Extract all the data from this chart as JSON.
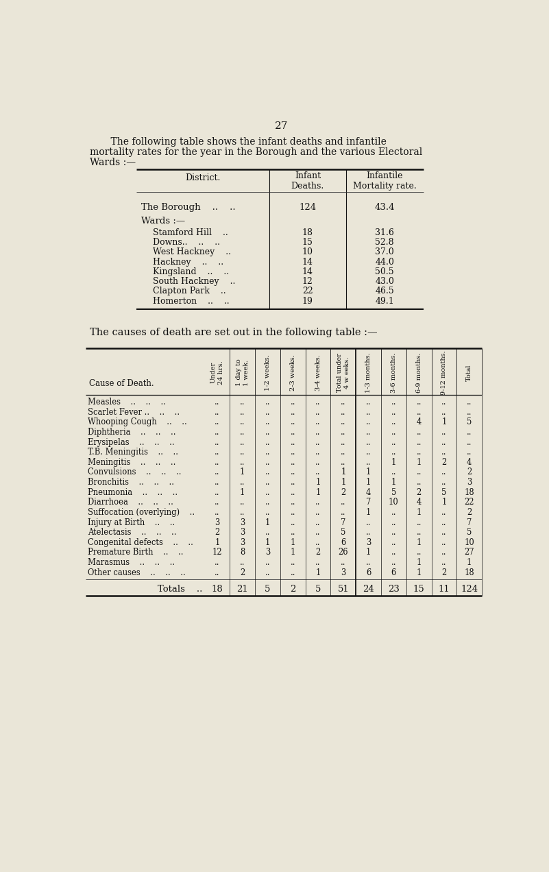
{
  "page_number": "27",
  "bg_color": "#eae6d8",
  "intro_text_line1": "    The following table shows the infant deaths and infantile",
  "intro_text_line2": "mortality rates for the year in the Borough and the various Electoral",
  "intro_text_line3": "Wards :—",
  "table1": {
    "col1_header": "District.",
    "col2_header": "Infant\nDeaths.",
    "col3_header": "Infantile\nMortality rate.",
    "borough_label": "The Borough    ..    ..",
    "borough_deaths": "124",
    "borough_rate": "43.4",
    "wards_label": "Wards :—",
    "ward_rows": [
      [
        "Stamford Hill    ..",
        "18",
        "31.6"
      ],
      [
        "Downs..    ..    ..",
        "15",
        "52.8"
      ],
      [
        "West Hackney    ..",
        "10",
        "37.0"
      ],
      [
        "Hackney    ..    ..",
        "14",
        "44.0"
      ],
      [
        "Kingsland    ..    ..",
        "14",
        "50.5"
      ],
      [
        "South Hackney    ..",
        "12",
        "43.0"
      ],
      [
        "Clapton Park    ..",
        "22",
        "46.5"
      ],
      [
        "Homerton    ..    ..",
        "19",
        "49.1"
      ]
    ]
  },
  "intro2": "The causes of death are set out in the following table :—",
  "table2": {
    "col_headers": [
      "Under\n24 hrs.",
      "1 day to\n1 week.",
      "1-2 weeks.",
      "2-3 weeks.",
      "3-4 weeks.",
      "Total under\n4 w eeks.",
      "1-3 months.",
      "3-6 months.",
      "6-9 months.",
      "9-12 months.",
      "Total"
    ],
    "row_label_header": "Cause of Death.",
    "rows": [
      [
        "Measles    ..    ..    ..",
        "..",
        "..",
        "..",
        "..",
        "..",
        "..",
        "..",
        "..",
        "..",
        "..",
        ".."
      ],
      [
        "Scarlet Fever ..    ..    ..",
        "..",
        "..",
        "..",
        "..",
        "..",
        "..",
        "..",
        "..",
        "..",
        "..",
        ".."
      ],
      [
        "Whooping Cough    ..    ..",
        "..",
        "..",
        "..",
        "..",
        "..",
        "..",
        "..",
        "..",
        "4",
        "1",
        "5"
      ],
      [
        "Diphtheria    ..    ..    ..",
        "..",
        "..",
        "..",
        "..",
        "..",
        "..",
        "..",
        "..",
        "..",
        "..",
        ".."
      ],
      [
        "Erysipelas    ..    ..    ..",
        "..",
        "..",
        "..",
        "..",
        "..",
        "..",
        "..",
        "..",
        "..",
        "..",
        ".."
      ],
      [
        "T.B. Meningitis    ..    ..",
        "..",
        "..",
        "..",
        "..",
        "..",
        "..",
        "..",
        "..",
        "..",
        "..",
        ".."
      ],
      [
        "Meningitis    ..    ..    ..",
        "..",
        "..",
        "..",
        "..",
        "..",
        "..",
        "..",
        "1",
        "1",
        "2",
        "4"
      ],
      [
        "Convulsions    ..    ..    ..",
        "..",
        "1",
        "..",
        "..",
        "..",
        "1",
        "1",
        "..",
        "..",
        "..",
        "2"
      ],
      [
        "Bronchitis    ..    ..    ..",
        "..",
        "..",
        "..",
        "..",
        "1",
        "1",
        "1",
        "1",
        "..",
        "..",
        "3"
      ],
      [
        "Pneumonia    ..    ..    ..",
        "..",
        "1",
        "..",
        "..",
        "1",
        "2",
        "4",
        "5",
        "2",
        "5",
        "18"
      ],
      [
        "Diarrhoea    ..    ..    ..",
        "..",
        "..",
        "..",
        "..",
        "..",
        "..",
        "7",
        "10",
        "4",
        "1",
        "22"
      ],
      [
        "Suffocation (overlying)    ..",
        "..",
        "..",
        "..",
        "..",
        "..",
        "..",
        "1",
        "..",
        "1",
        "..",
        "2"
      ],
      [
        "Injury at Birth    ..    ..",
        "3",
        "3",
        "1",
        "..",
        "..",
        "7",
        "..",
        "..",
        "..",
        "..",
        "7"
      ],
      [
        "Atelectasis    ..    ..    ..",
        "2",
        "3",
        "..",
        "..",
        "..",
        "5",
        "..",
        "..",
        "..",
        "..",
        "5"
      ],
      [
        "Congenital defects    ..    ..",
        "1",
        "3",
        "1",
        "1",
        "..",
        "6",
        "3",
        "..",
        "1",
        "..",
        "10"
      ],
      [
        "Premature Birth    ..    ..",
        "12",
        "8",
        "3",
        "1",
        "2",
        "26",
        "1",
        "..",
        "..",
        "..",
        "27"
      ],
      [
        "Marasmus    ..    ..    ..",
        "..",
        "..",
        "..",
        "..",
        "..",
        "..",
        "..",
        "..",
        "1",
        "..",
        "1"
      ],
      [
        "Other causes    ..    ..    ..",
        "..",
        "2",
        "..",
        "..",
        "1",
        "3",
        "6",
        "6",
        "1",
        "2",
        "18"
      ]
    ],
    "totals_label": "Totals    ..",
    "totals_row": [
      "18",
      "21",
      "5",
      "2",
      "5",
      "51",
      "24",
      "23",
      "15",
      "11",
      "124"
    ]
  }
}
